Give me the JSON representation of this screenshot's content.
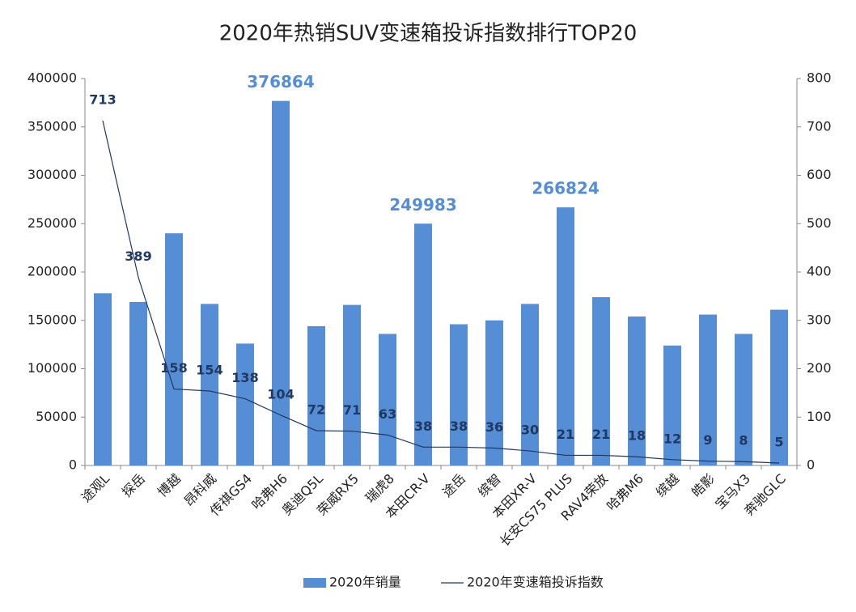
{
  "chart_data": {
    "type": "bar-line",
    "title": "2020年热销SUV变速箱投诉指数排行TOP20",
    "categories": [
      "途观L",
      "探岳",
      "博越",
      "昂科威",
      "传祺GS4",
      "哈弗H6",
      "奥迪Q5L",
      "荣威RX5",
      "瑞虎8",
      "本田CR-V",
      "途岳",
      "缤智",
      "本田XR-V",
      "长安CS75 PLUS",
      "RAV4荣放",
      "哈弗M6",
      "缤越",
      "皓影",
      "宝马X3",
      "奔驰GLC"
    ],
    "series": [
      {
        "name": "2020年销量",
        "type": "bar",
        "color": "#558ed5",
        "values": [
          178000,
          169000,
          240000,
          167000,
          126000,
          376864,
          144000,
          166000,
          136000,
          249983,
          146000,
          150000,
          167000,
          266824,
          174000,
          154000,
          124000,
          156000,
          136000,
          161000
        ],
        "value_labels": [
          null,
          null,
          null,
          null,
          null,
          376864,
          null,
          null,
          null,
          249983,
          null,
          null,
          null,
          266824,
          null,
          null,
          null,
          null,
          null,
          null
        ]
      },
      {
        "name": "2020年变速箱投诉指数",
        "type": "line",
        "axis": "y2",
        "color": "#1f3864",
        "values": [
          713,
          389,
          158,
          154,
          138,
          104,
          72,
          71,
          63,
          38,
          38,
          36,
          30,
          21,
          21,
          18,
          12,
          9,
          8,
          5
        ]
      }
    ],
    "ylim": [
      0,
      400000
    ],
    "yticks": [
      0,
      50000,
      100000,
      150000,
      200000,
      250000,
      300000,
      350000,
      400000
    ],
    "y2lim": [
      0,
      800
    ],
    "y2ticks": [
      0,
      100,
      200,
      300,
      400,
      500,
      600,
      700,
      800
    ],
    "grid": false,
    "legend": "bottom"
  }
}
